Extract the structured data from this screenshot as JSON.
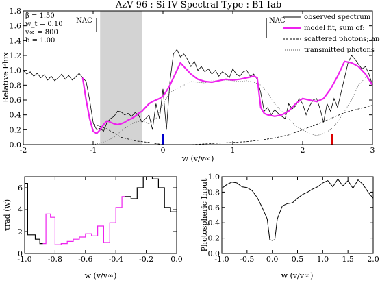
{
  "chart_data": [
    {
      "type": "line",
      "title": "AzV 96 : Si IV     Spectral Type : B1 Iab",
      "xlabel": "w (v/v∞)",
      "ylabel": "Relative Flux",
      "xlim": [
        -2,
        3
      ],
      "ylim": [
        0,
        1.8
      ],
      "xticks": [
        "-2",
        "-1",
        "0",
        "1",
        "2",
        "3"
      ],
      "yticks": [
        "0.0",
        "0.2",
        "0.4",
        "0.6",
        "0.8",
        "1.0",
        "1.2",
        "1.4",
        "1.6",
        "1.8"
      ],
      "params": [
        "β  = 1.50",
        "w_t = 0.10",
        "v∞ = 800",
        "b  = 1.00"
      ],
      "nac_labels": [
        "NAC",
        "NAC"
      ],
      "nac_x": [
        -0.95,
        1.48
      ],
      "shaded_range": [
        -0.9,
        -0.3
      ],
      "markers": [
        {
          "x": 0.0,
          "color": "#0000cc"
        },
        {
          "x": 2.42,
          "color": "#dd0000"
        }
      ],
      "legend": [
        "observed spectrum",
        "model fit, sum of:",
        "scattered photons; and",
        "transmitted photons"
      ],
      "colors": {
        "observed": "#000000",
        "model": "#ee22ee",
        "scattered": "#000000",
        "transmitted": "#555555",
        "shade": "#d3d3d3"
      },
      "series": [
        {
          "name": "observed spectrum",
          "x": [
            -2.0,
            -1.95,
            -1.9,
            -1.85,
            -1.8,
            -1.75,
            -1.7,
            -1.65,
            -1.6,
            -1.55,
            -1.5,
            -1.45,
            -1.4,
            -1.35,
            -1.3,
            -1.25,
            -1.2,
            -1.15,
            -1.1,
            -1.05,
            -1.0,
            -0.95,
            -0.9,
            -0.85,
            -0.8,
            -0.75,
            -0.7,
            -0.65,
            -0.6,
            -0.55,
            -0.5,
            -0.45,
            -0.4,
            -0.35,
            -0.3,
            -0.25,
            -0.2,
            -0.15,
            -0.1,
            -0.05,
            0.0,
            0.05,
            0.1,
            0.15,
            0.2,
            0.25,
            0.3,
            0.35,
            0.4,
            0.45,
            0.5,
            0.55,
            0.6,
            0.65,
            0.7,
            0.75,
            0.8,
            0.85,
            0.9,
            0.95,
            1.0,
            1.05,
            1.1,
            1.15,
            1.2,
            1.25,
            1.3,
            1.35,
            1.4,
            1.45,
            1.5,
            1.55,
            1.6,
            1.65,
            1.7,
            1.75,
            1.8,
            1.85,
            1.9,
            1.95,
            2.0,
            2.05,
            2.1,
            2.15,
            2.2,
            2.25,
            2.3,
            2.35,
            2.4,
            2.45,
            2.5,
            2.55,
            2.6,
            2.65,
            2.7,
            2.75,
            2.8,
            2.85,
            2.9,
            2.95,
            3.0
          ],
          "values": [
            1.0,
            0.95,
            0.98,
            0.92,
            0.96,
            0.9,
            0.94,
            0.87,
            0.92,
            0.86,
            0.9,
            0.95,
            0.88,
            0.93,
            0.87,
            0.91,
            0.96,
            0.9,
            0.85,
            0.6,
            0.3,
            0.2,
            0.22,
            0.18,
            0.3,
            0.35,
            0.38,
            0.45,
            0.44,
            0.4,
            0.42,
            0.38,
            0.43,
            0.4,
            0.3,
            0.35,
            0.4,
            0.2,
            0.55,
            0.35,
            0.75,
            0.2,
            0.85,
            1.22,
            1.28,
            1.18,
            1.22,
            1.15,
            1.05,
            1.12,
            1.0,
            1.05,
            0.98,
            1.02,
            0.95,
            1.0,
            0.92,
            0.98,
            0.95,
            0.9,
            1.02,
            0.95,
            0.92,
            0.98,
            1.0,
            0.92,
            0.95,
            0.88,
            0.7,
            0.45,
            0.5,
            0.4,
            0.47,
            0.42,
            0.38,
            0.35,
            0.55,
            0.48,
            0.52,
            0.62,
            0.55,
            0.4,
            0.52,
            0.6,
            0.62,
            0.48,
            0.3,
            0.55,
            0.45,
            0.62,
            0.5,
            0.7,
            0.9,
            1.1,
            1.2,
            1.15,
            1.08,
            1.02,
            1.05,
            0.95,
            0.8
          ]
        },
        {
          "name": "model fit, sum of:",
          "x": [
            -1.15,
            -1.1,
            -1.05,
            -1.0,
            -0.95,
            -0.9,
            -0.85,
            -0.8,
            -0.75,
            -0.7,
            -0.65,
            -0.6,
            -0.55,
            -0.5,
            -0.45,
            -0.4,
            -0.35,
            -0.3,
            -0.25,
            -0.2,
            -0.15,
            -0.1,
            -0.05,
            0.0,
            0.05,
            0.1,
            0.15,
            0.2,
            0.25,
            0.3,
            0.4,
            0.5,
            0.6,
            0.7,
            0.8,
            0.9,
            1.0,
            1.1,
            1.2,
            1.3,
            1.35,
            1.4,
            1.45,
            1.5,
            1.6,
            1.7,
            1.8,
            1.9,
            2.0,
            2.1,
            2.2,
            2.3,
            2.4,
            2.5,
            2.6,
            2.7,
            2.8,
            2.9,
            3.0
          ],
          "values": [
            0.9,
            0.6,
            0.35,
            0.18,
            0.15,
            0.2,
            0.27,
            0.32,
            0.3,
            0.28,
            0.27,
            0.28,
            0.3,
            0.33,
            0.35,
            0.38,
            0.42,
            0.45,
            0.5,
            0.55,
            0.58,
            0.6,
            0.62,
            0.65,
            0.72,
            0.8,
            0.9,
            1.0,
            1.1,
            1.05,
            0.95,
            0.88,
            0.85,
            0.84,
            0.86,
            0.88,
            0.87,
            0.88,
            0.9,
            0.92,
            0.9,
            0.5,
            0.42,
            0.4,
            0.38,
            0.4,
            0.45,
            0.55,
            0.62,
            0.6,
            0.58,
            0.62,
            0.75,
            0.92,
            1.12,
            1.1,
            1.05,
            0.95,
            0.8
          ]
        },
        {
          "name": "scattered photons; and",
          "x": [
            -1.0,
            -0.8,
            -0.6,
            -0.4,
            -0.2,
            0.0,
            0.2,
            0.4,
            0.6,
            0.8,
            1.0,
            1.2,
            1.4,
            1.6,
            1.8,
            2.0,
            2.2,
            2.4,
            2.6,
            2.8,
            3.0
          ],
          "values": [
            0.28,
            0.21,
            0.1,
            0.05,
            0.03,
            0.0,
            0.0,
            0.0,
            0.01,
            0.02,
            0.03,
            0.04,
            0.06,
            0.09,
            0.13,
            0.2,
            0.27,
            0.35,
            0.43,
            0.48,
            0.53
          ]
        },
        {
          "name": "transmitted photons",
          "x": [
            -1.0,
            -0.9,
            -0.8,
            -0.7,
            -0.6,
            -0.5,
            -0.4,
            -0.3,
            -0.2,
            -0.1,
            0.0,
            0.1,
            0.2,
            0.3,
            0.4,
            0.5,
            0.6,
            0.7,
            0.8,
            0.9,
            1.0,
            1.1,
            1.2,
            1.3,
            1.4,
            1.5,
            1.6,
            1.7,
            1.8,
            1.9,
            2.0,
            2.1,
            2.2,
            2.3,
            2.4,
            2.5,
            2.6,
            2.7,
            2.8,
            2.9,
            3.0
          ],
          "values": [
            0.0,
            0.02,
            0.05,
            0.1,
            0.18,
            0.25,
            0.3,
            0.32,
            0.28,
            0.35,
            0.55,
            0.7,
            0.75,
            0.8,
            0.85,
            0.84,
            0.83,
            0.86,
            0.86,
            0.87,
            0.86,
            0.85,
            0.86,
            0.84,
            0.8,
            0.7,
            0.55,
            0.45,
            0.35,
            0.25,
            0.2,
            0.15,
            0.12,
            0.15,
            0.2,
            0.3,
            0.45,
            0.6,
            0.8,
            0.9,
            0.85
          ]
        }
      ]
    },
    {
      "type": "line",
      "xlabel": "w (v/v∞)",
      "ylabel": "τrad (w)",
      "xlim": [
        -1.0,
        0.0
      ],
      "ylim": [
        0,
        7
      ],
      "xticks": [
        "-1.0",
        "-0.8",
        "-0.6",
        "-0.4",
        "-0.2",
        "0.0"
      ],
      "yticks": [
        "0",
        "2",
        "4",
        "6"
      ],
      "colors": {
        "outer": "#000000",
        "middle": "#ee22ee"
      },
      "series": [
        {
          "x": [
            -1.0,
            -0.98,
            -0.98,
            -0.96,
            -0.96,
            -0.93,
            -0.93,
            -0.9,
            -0.9,
            -0.88
          ],
          "values": [
            6.4,
            6.4,
            1.7,
            1.7,
            1.7,
            1.7,
            1.3,
            1.3,
            0.9,
            0.9
          ]
        },
        {
          "x": [
            -0.88,
            -0.86,
            -0.86,
            -0.83,
            -0.83,
            -0.8,
            -0.8,
            -0.76,
            -0.76,
            -0.72,
            -0.72,
            -0.68,
            -0.68,
            -0.64,
            -0.64,
            -0.6,
            -0.6,
            -0.56,
            -0.56,
            -0.52,
            -0.52,
            -0.48,
            -0.48,
            -0.44,
            -0.44,
            -0.4,
            -0.4,
            -0.36,
            -0.36,
            -0.34
          ],
          "values": [
            0.9,
            0.9,
            3.6,
            3.6,
            3.3,
            3.3,
            0.8,
            0.8,
            0.9,
            0.9,
            1.1,
            1.1,
            1.3,
            1.3,
            1.5,
            1.5,
            1.8,
            1.8,
            1.6,
            1.6,
            2.5,
            2.5,
            1.0,
            1.0,
            2.8,
            2.8,
            4.2,
            4.2,
            5.2,
            5.2
          ]
        },
        {
          "x": [
            -0.34,
            -0.3,
            -0.3,
            -0.26,
            -0.26,
            -0.22,
            -0.22,
            -0.16,
            -0.16,
            -0.12,
            -0.12,
            -0.08,
            -0.08,
            -0.04,
            -0.04,
            0.0
          ],
          "values": [
            5.2,
            5.2,
            5.0,
            5.0,
            6.0,
            6.0,
            7.0,
            7.0,
            6.8,
            6.8,
            6.0,
            6.0,
            4.2,
            4.2,
            3.8,
            3.8
          ]
        }
      ]
    },
    {
      "type": "line",
      "xlabel": "w (v/v∞)",
      "ylabel": "Photospheric Input",
      "xlim": [
        -1.0,
        2.0
      ],
      "ylim": [
        0,
        1.0
      ],
      "xticks": [
        "-1.0",
        "-0.5",
        "0.0",
        "0.5",
        "1.0",
        "1.5",
        "2.0"
      ],
      "yticks": [
        "0.0",
        "0.2",
        "0.4",
        "0.6",
        "0.8",
        "1.0"
      ],
      "series": [
        {
          "x": [
            -1.0,
            -0.9,
            -0.8,
            -0.7,
            -0.6,
            -0.5,
            -0.4,
            -0.3,
            -0.2,
            -0.1,
            -0.05,
            0.0,
            0.05,
            0.1,
            0.2,
            0.3,
            0.4,
            0.5,
            0.6,
            0.7,
            0.8,
            0.9,
            1.0,
            1.1,
            1.2,
            1.3,
            1.4,
            1.5,
            1.6,
            1.7,
            1.8,
            1.9,
            2.0
          ],
          "values": [
            0.85,
            0.9,
            0.93,
            0.92,
            0.87,
            0.86,
            0.82,
            0.73,
            0.6,
            0.45,
            0.18,
            0.17,
            0.18,
            0.45,
            0.62,
            0.65,
            0.66,
            0.72,
            0.77,
            0.8,
            0.84,
            0.87,
            0.92,
            0.95,
            0.87,
            0.97,
            0.88,
            0.95,
            0.85,
            0.96,
            0.9,
            0.8,
            0.72
          ]
        }
      ]
    }
  ]
}
